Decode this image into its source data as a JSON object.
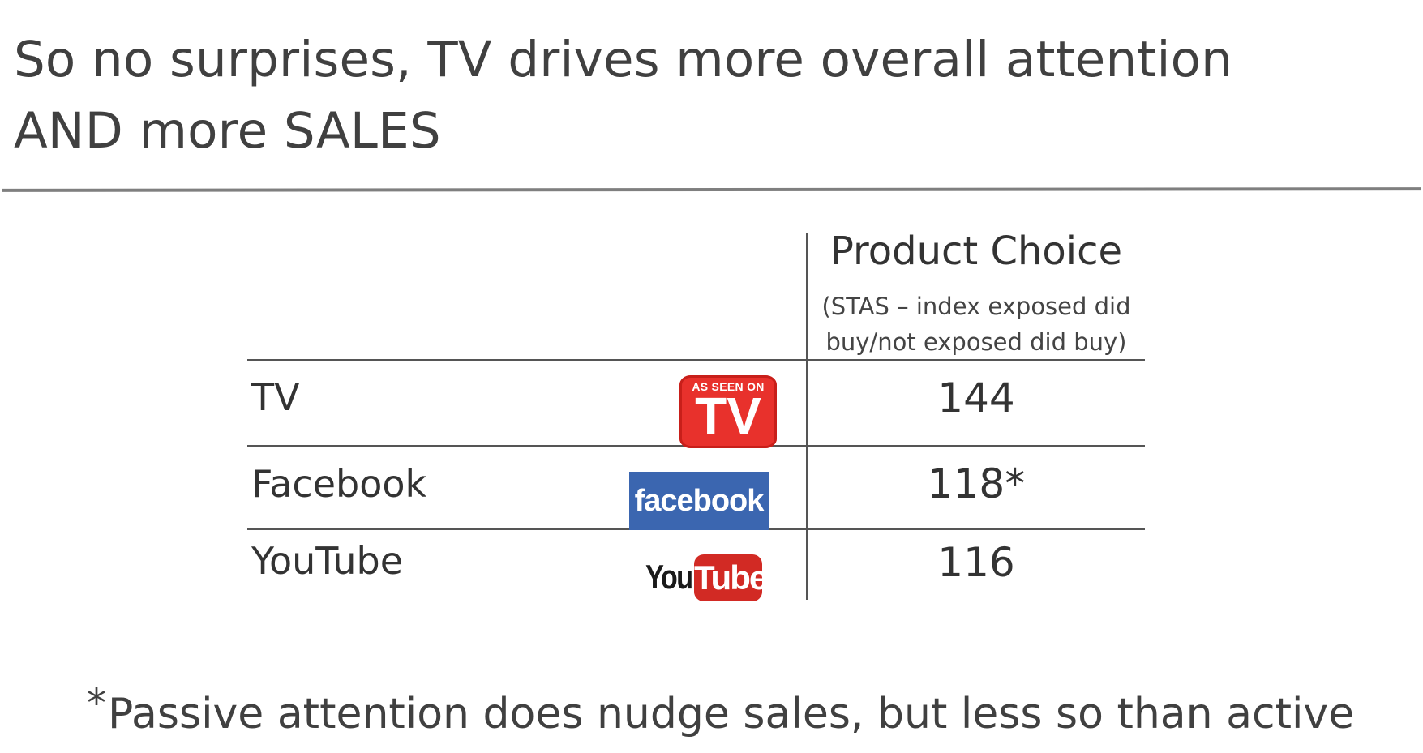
{
  "slide": {
    "title_line1": "So no surprises, TV drives more overall attention",
    "title_line2": "AND more SALES"
  },
  "table": {
    "header": {
      "title": "Product Choice",
      "subtitle_line1": "(STAS – index exposed did",
      "subtitle_line2": "buy/not exposed did buy)"
    },
    "rows": [
      {
        "label": "TV",
        "value": "144",
        "logo": "as-seen-on-tv-logo",
        "logo_text_small": "AS SEEN ON",
        "logo_text_big": "TV"
      },
      {
        "label": "Facebook",
        "value": "118*",
        "logo": "facebook-logo",
        "logo_text": "facebook"
      },
      {
        "label": "YouTube",
        "value": "116",
        "logo": "youtube-logo",
        "logo_text_you": "You",
        "logo_text_tube": "Tube"
      }
    ]
  },
  "footnote": {
    "star": "*",
    "text": "Passive attention does nudge sales, but less so than active"
  },
  "colors": {
    "text": "#404040",
    "rule": "#7f7f7f",
    "tv_red": "#e8312c",
    "facebook_blue": "#3b66b0",
    "youtube_red": "#d22a24"
  }
}
